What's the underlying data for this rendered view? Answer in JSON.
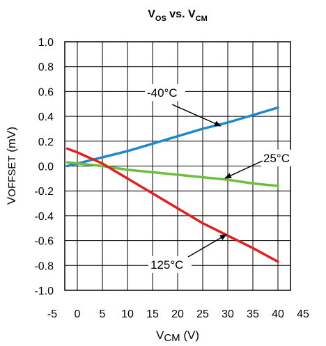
{
  "chart_data": {
    "type": "line",
    "title": {
      "main": "V",
      "sub1": "OS",
      "mid": " vs. V",
      "sub2": "CM"
    },
    "xlabel": {
      "main": "V",
      "sub": "CM",
      "unit": " (V)"
    },
    "ylabel": {
      "main": "V",
      "sub": "OFFSET",
      "unit": " (mV)"
    },
    "xlim": [
      -5,
      45
    ],
    "ylim": [
      -1.0,
      1.0
    ],
    "x_ticks": [
      -5,
      0,
      5,
      10,
      15,
      20,
      25,
      30,
      35,
      40,
      45
    ],
    "y_ticks": [
      1.0,
      0.8,
      0.6,
      0.4,
      0.2,
      0.0,
      -0.2,
      -0.4,
      -0.6,
      -0.8,
      -1.0
    ],
    "x_tick_labels": [
      "-5",
      "0",
      "5",
      "10",
      "15",
      "20",
      "25",
      "30",
      "35",
      "40",
      "45"
    ],
    "y_tick_labels": [
      "1.0",
      "0.8",
      "0.6",
      "0.4",
      "0.2",
      "0.0",
      "-0.2",
      "-0.4",
      "-0.6",
      "-0.8",
      "-1.0"
    ],
    "grid": true,
    "series": [
      {
        "name": "-40°C",
        "color": "#1f88c8",
        "points": [
          [
            -2,
            0.0
          ],
          [
            5,
            0.07
          ],
          [
            10,
            0.12
          ],
          [
            15,
            0.18
          ],
          [
            20,
            0.24
          ],
          [
            25,
            0.3
          ],
          [
            30,
            0.35
          ],
          [
            35,
            0.41
          ],
          [
            40,
            0.47
          ]
        ]
      },
      {
        "name": "25°C",
        "color": "#6cbf3a",
        "points": [
          [
            -2,
            0.03
          ],
          [
            5,
            0.0
          ],
          [
            10,
            -0.03
          ],
          [
            15,
            -0.05
          ],
          [
            20,
            -0.07
          ],
          [
            25,
            -0.09
          ],
          [
            30,
            -0.11
          ],
          [
            35,
            -0.14
          ],
          [
            40,
            -0.16
          ]
        ]
      },
      {
        "name": "125°C",
        "color": "#e31f1f",
        "points": [
          [
            -2,
            0.14
          ],
          [
            0,
            0.11
          ],
          [
            5,
            0.02
          ],
          [
            10,
            -0.1
          ],
          [
            15,
            -0.22
          ],
          [
            20,
            -0.34
          ],
          [
            25,
            -0.46
          ],
          [
            30,
            -0.56
          ],
          [
            35,
            -0.66
          ],
          [
            40,
            -0.77
          ]
        ]
      }
    ],
    "annotations": [
      {
        "text": "-40°C",
        "series": "-40°C"
      },
      {
        "text": "25°C",
        "series": "25°C"
      },
      {
        "text": "125°C",
        "series": "125°C"
      }
    ]
  }
}
